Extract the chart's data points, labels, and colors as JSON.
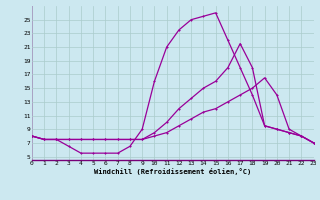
{
  "xlabel": "Windchill (Refroidissement éolien,°C)",
  "bg_color": "#cce8f0",
  "grid_color": "#aacccc",
  "line_color": "#990099",
  "x_ticks": [
    0,
    1,
    2,
    3,
    4,
    5,
    6,
    7,
    8,
    9,
    10,
    11,
    12,
    13,
    14,
    15,
    16,
    17,
    18,
    19,
    20,
    21,
    22,
    23
  ],
  "y_ticks": [
    5,
    7,
    9,
    11,
    13,
    15,
    17,
    19,
    21,
    23,
    25
  ],
  "xlim": [
    0,
    23
  ],
  "ylim": [
    4.5,
    27
  ],
  "line1_x": [
    0,
    1,
    2,
    3,
    4,
    5,
    6,
    7,
    8,
    9,
    10,
    11,
    12,
    13,
    14,
    15,
    16,
    17,
    18,
    19,
    20,
    21,
    22,
    23
  ],
  "line1_y": [
    8.0,
    7.5,
    7.5,
    6.5,
    5.5,
    5.5,
    5.5,
    5.5,
    6.5,
    9.0,
    16.0,
    21.0,
    23.5,
    25.0,
    25.5,
    26.0,
    22.0,
    18.0,
    14.0,
    9.5,
    9.0,
    8.5,
    8.0,
    7.0
  ],
  "line2_x": [
    0,
    1,
    2,
    3,
    4,
    5,
    6,
    7,
    8,
    9,
    10,
    11,
    12,
    13,
    14,
    15,
    16,
    17,
    18,
    19,
    20,
    21,
    22,
    23
  ],
  "line2_y": [
    8.0,
    7.5,
    7.5,
    7.5,
    7.5,
    7.5,
    7.5,
    7.5,
    7.5,
    7.5,
    8.0,
    8.5,
    9.5,
    10.5,
    11.5,
    12.0,
    13.0,
    14.0,
    15.0,
    16.5,
    14.0,
    9.0,
    8.0,
    7.0
  ],
  "line3_x": [
    0,
    1,
    2,
    3,
    4,
    5,
    6,
    7,
    8,
    9,
    10,
    11,
    12,
    13,
    14,
    15,
    16,
    17,
    18,
    19,
    20,
    21,
    22,
    23
  ],
  "line3_y": [
    8.0,
    7.5,
    7.5,
    7.5,
    7.5,
    7.5,
    7.5,
    7.5,
    7.5,
    7.5,
    8.5,
    10.0,
    12.0,
    13.5,
    15.0,
    16.0,
    18.0,
    21.5,
    18.0,
    9.5,
    9.0,
    8.5,
    8.0,
    7.0
  ]
}
